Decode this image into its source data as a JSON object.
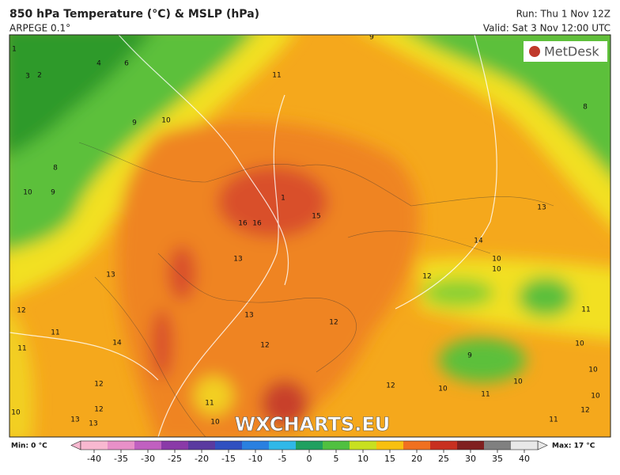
{
  "header": {
    "title": "850 hPa Temperature (°C) & MSLP (hPa)",
    "model": "ARPEGE 0.1°",
    "run": "Run: Thu 1 Nov 12Z",
    "valid": "Valid: Sat 3 Nov 12:00 UTC"
  },
  "logo": "MetDesk",
  "watermark": "WXCHARTS.EU",
  "map": {
    "contour_labels": [
      9,
      1,
      3,
      2,
      4,
      6,
      11,
      10,
      9,
      8,
      8,
      10,
      9,
      1,
      15,
      16,
      16,
      13,
      14,
      10,
      10,
      12,
      13,
      13,
      12,
      11,
      11,
      14,
      13,
      12,
      12,
      11,
      10,
      9,
      10,
      12,
      12,
      13,
      13,
      11,
      10,
      10,
      10,
      10,
      12,
      12,
      11,
      10,
      11
    ]
  },
  "legend": {
    "min": "Min: 0 °C",
    "max": "Max: 17 °C",
    "ticks": [
      -40,
      -35,
      -30,
      -25,
      -20,
      -15,
      -10,
      -5,
      0,
      5,
      10,
      15,
      20,
      25,
      30,
      35,
      40
    ],
    "colors": [
      "#f8b8d0",
      "#e890c8",
      "#c060c0",
      "#8a3aa8",
      "#5a3aa0",
      "#3050c0",
      "#2a80e0",
      "#30b8e8",
      "#20a060",
      "#50c040",
      "#c8e020",
      "#f8c010",
      "#f07020",
      "#c83020",
      "#802020",
      "#808080",
      "#e8e8e8"
    ]
  }
}
